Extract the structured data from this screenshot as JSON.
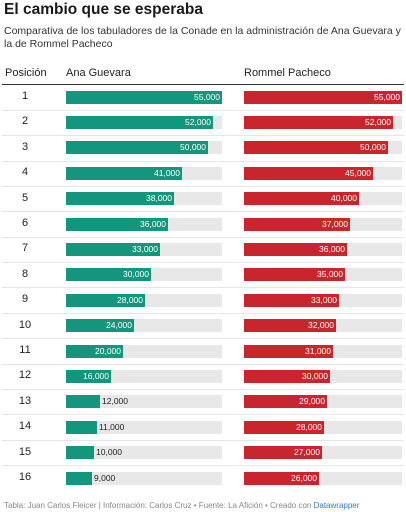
{
  "chart_data": {
    "type": "bar",
    "title": "El cambio que se esperaba",
    "subtitle": "Comparativa de los tabuladores de la Conade en la administración de Ana Guevara y la de Rommel Pacheco",
    "column_headers": {
      "rank": "Posición",
      "series_a": "Ana Guevara",
      "series_b": "Rommel Pacheco"
    },
    "categories": [
      "1",
      "2",
      "3",
      "4",
      "5",
      "6",
      "7",
      "8",
      "9",
      "10",
      "11",
      "12",
      "13",
      "14",
      "15",
      "16"
    ],
    "series": [
      {
        "name": "Ana Guevara",
        "color": "#14967c",
        "values": [
          55000,
          52000,
          50000,
          41000,
          38000,
          36000,
          33000,
          30000,
          28000,
          24000,
          20000,
          16000,
          12000,
          11000,
          10000,
          9000
        ],
        "labels": [
          "55,000",
          "52,000",
          "50,000",
          "41,000",
          "38,000",
          "36,000",
          "33,000",
          "30,000",
          "28,000",
          "24,000",
          "20,000",
          "16,000",
          "12,000",
          "11,000",
          "10,000",
          "9,000"
        ]
      },
      {
        "name": "Rommel Pacheco",
        "color": "#c8262c",
        "values": [
          55000,
          52000,
          50000,
          45000,
          40000,
          37000,
          36000,
          35000,
          33000,
          32000,
          31000,
          30000,
          29000,
          28000,
          27000,
          26000
        ],
        "labels": [
          "55,000",
          "52,000",
          "50,000",
          "45,000",
          "40,000",
          "37,000",
          "36,000",
          "35,000",
          "33,000",
          "32,000",
          "31,000",
          "30,000",
          "29,000",
          "28,000",
          "27,000",
          "26,000"
        ]
      }
    ],
    "xlim": [
      0,
      55000
    ],
    "footer": {
      "text": "Tabla: Juan Carlos Fleicer | Información: Carlos Cruz • Fuente: La Afición • Creado con ",
      "link": "Datawrapper"
    }
  }
}
